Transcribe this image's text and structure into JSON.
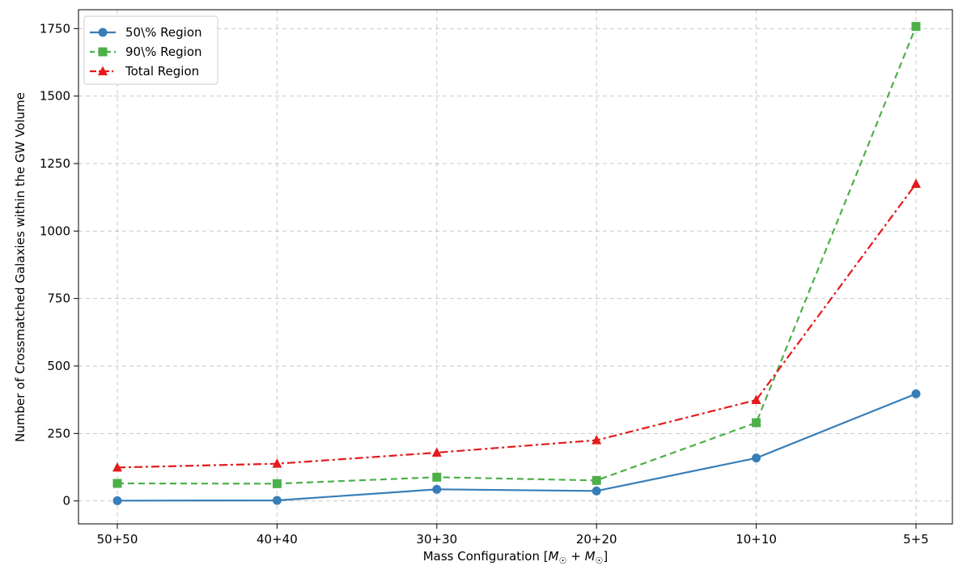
{
  "chart_data": {
    "type": "line",
    "categories": [
      "50+50",
      "40+40",
      "30+30",
      "20+20",
      "10+10",
      "5+5"
    ],
    "xlabel": "Mass Configuration [M☉ + M☉]",
    "xlabel_parts": {
      "prefix": "Mass Configuration [",
      "m1": "M",
      "sun1": "☉",
      "plus": " + ",
      "m2": "M",
      "sun2": "☉",
      "suffix": "]"
    },
    "ylabel": "Number of Crossmatched Galaxies within the GW Volume",
    "ylim": [
      -85,
      1820
    ],
    "yticks": [
      0,
      250,
      500,
      750,
      1000,
      1250,
      1500,
      1750
    ],
    "grid": true,
    "legend_position": "upper-left",
    "series": [
      {
        "name": "50\\% Region",
        "color": "#377eb8",
        "linestyle": "solid",
        "marker": "circle",
        "values": [
          1,
          2,
          43,
          37,
          159,
          397
        ]
      },
      {
        "name": "90\\% Region",
        "color": "#4daf4a",
        "linestyle": "dashed",
        "marker": "square",
        "values": [
          65,
          64,
          88,
          76,
          290,
          1758
        ]
      },
      {
        "name": "Total Region",
        "color": "#e41a1c",
        "linestyle": "dashdot",
        "marker": "triangle",
        "values": [
          124,
          138,
          179,
          225,
          374,
          1175
        ]
      }
    ]
  }
}
